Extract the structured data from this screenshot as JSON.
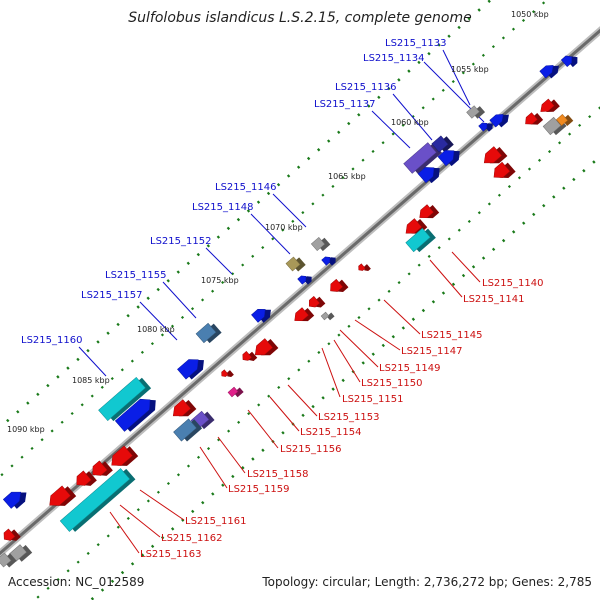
{
  "title": "Sulfolobus islandicus L.S.2.15, complete genome",
  "accession": "Accession: NC_012589",
  "summary": "Topology: circular; Length: 2,736,272 bp; Genes: 2,785",
  "scale_labels": [
    "1050 kbp",
    "1055 kbp",
    "1060 kbp",
    "1065 kbp",
    "1070 kbp",
    "1075 kbp",
    "1080 kbp",
    "1085 kbp",
    "1090 kbp"
  ],
  "genes_forward": [
    "LS215_1133",
    "LS215_1134",
    "LS215_1136",
    "LS215_1137",
    "LS215_1146",
    "LS215_1148",
    "LS215_1152",
    "LS215_1155",
    "LS215_1157",
    "LS215_1160"
  ],
  "genes_reverse": [
    "LS215_1140",
    "LS215_1141",
    "LS215_1145",
    "LS215_1147",
    "LS215_1149",
    "LS215_1150",
    "LS215_1151",
    "LS215_1153",
    "LS215_1154",
    "LS215_1156",
    "LS215_1158",
    "LS215_1159",
    "LS215_1161",
    "LS215_1162",
    "LS215_1163"
  ],
  "colors": {
    "forward_label": "#1010cc",
    "reverse_label": "#cc1010",
    "forward_gene": "#0a1ee6",
    "reverse_gene": "#e60a0a",
    "cyan_gene": "#11c8d0",
    "steel_gene": "#4a7fb0",
    "purple_gene": "#6a50c8",
    "olive_gene": "#a89858",
    "gray_gene": "#a0a0a0",
    "orange_gene": "#f08a20",
    "magenta_gene": "#e0208a",
    "tick": "#1a7a1a"
  }
}
